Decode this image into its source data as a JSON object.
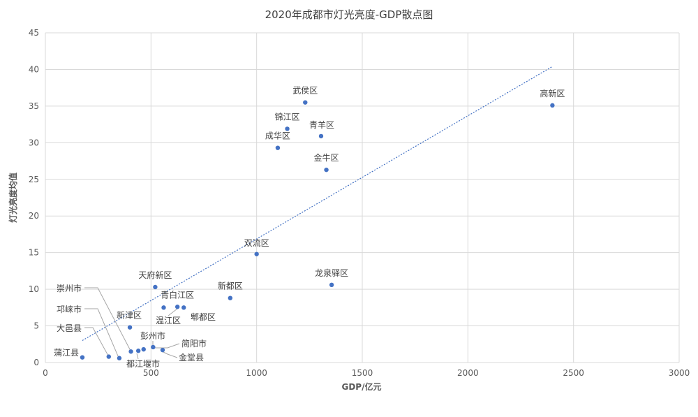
{
  "chart_data": {
    "type": "scatter",
    "title": "2020年成都市灯光亮度-GDP散点图",
    "xlabel": "GDP/亿元",
    "ylabel": "灯光亮度均值",
    "xlim": [
      0,
      3000
    ],
    "ylim": [
      0,
      45
    ],
    "xticks": [
      0,
      500,
      1000,
      1500,
      2000,
      2500,
      3000
    ],
    "yticks": [
      0,
      5,
      10,
      15,
      20,
      25,
      30,
      35,
      40,
      45
    ],
    "grid": true,
    "trendline": {
      "type": "linear",
      "style": "dotted",
      "x": [
        175,
        2400
      ],
      "y": [
        3.0,
        40.4
      ]
    },
    "colors": {
      "point": "#4472c4",
      "grid": "#d9d9d9",
      "trend": "#4472c4"
    },
    "points": [
      {
        "label": "高新区",
        "x": 2400,
        "y": 35.1
      },
      {
        "label": "武侯区",
        "x": 1230,
        "y": 35.5
      },
      {
        "label": "锦江区",
        "x": 1145,
        "y": 31.9
      },
      {
        "label": "青羊区",
        "x": 1305,
        "y": 30.9
      },
      {
        "label": "成华区",
        "x": 1100,
        "y": 29.3
      },
      {
        "label": "金牛区",
        "x": 1330,
        "y": 26.3
      },
      {
        "label": "双流区",
        "x": 1000,
        "y": 14.8
      },
      {
        "label": "龙泉驿区",
        "x": 1355,
        "y": 10.6
      },
      {
        "label": "新都区",
        "x": 875,
        "y": 8.8
      },
      {
        "label": "天府新区",
        "x": 520,
        "y": 10.3
      },
      {
        "label": "青白江区",
        "x": 625,
        "y": 7.6
      },
      {
        "label": "温江区",
        "x": 560,
        "y": 7.5
      },
      {
        "label": "郫都区",
        "x": 655,
        "y": 7.5
      },
      {
        "label": "新津区",
        "x": 400,
        "y": 4.8
      },
      {
        "label": "彭州市",
        "x": 510,
        "y": 2.1
      },
      {
        "label": "简阳市",
        "x": 465,
        "y": 1.8
      },
      {
        "label": "金堂县",
        "x": 555,
        "y": 1.7
      },
      {
        "label": "都江堰市",
        "x": 440,
        "y": 1.6
      },
      {
        "label": "崇州市",
        "x": 405,
        "y": 1.5
      },
      {
        "label": "邛崃市",
        "x": 350,
        "y": 0.6
      },
      {
        "label": "大邑县",
        "x": 300,
        "y": 0.8
      },
      {
        "label": "蒲江县",
        "x": 175,
        "y": 0.7
      }
    ]
  }
}
